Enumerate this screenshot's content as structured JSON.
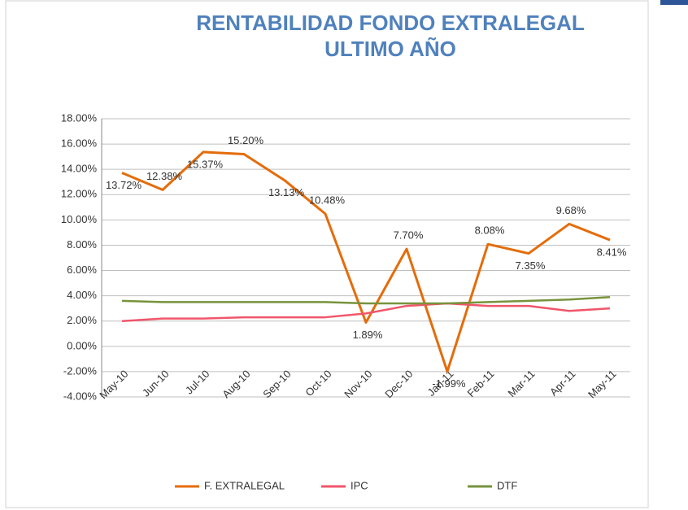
{
  "chart_data": {
    "type": "line",
    "title": "RENTABILIDAD FONDO EXTRALEGAL",
    "subtitle": "ULTIMO AÑO",
    "categories": [
      "May-10",
      "Jun-10",
      "Jul-10",
      "Aug-10",
      "Sep-10",
      "Oct-10",
      "Nov-10",
      "Dec-10",
      "Jan-11",
      "Feb-11",
      "Mar-11",
      "Apr-11",
      "May-11"
    ],
    "series": [
      {
        "name": "F. EXTRALEGAL",
        "color": "#e46c0a",
        "values": [
          13.72,
          12.38,
          15.37,
          15.2,
          13.13,
          10.48,
          1.89,
          7.7,
          -1.99,
          8.08,
          7.35,
          9.68,
          8.41
        ],
        "value_labels": [
          "13.72%",
          "12.38%",
          "15.37%",
          "15.20%",
          "13.13%",
          "10.48%",
          "1.89%",
          "7.70%",
          "-1.99%",
          "8.08%",
          "7.35%",
          "9.68%",
          "8.41%"
        ]
      },
      {
        "name": "IPC",
        "color": "#f0566a",
        "values": [
          2.0,
          2.2,
          2.2,
          2.3,
          2.3,
          2.3,
          2.6,
          3.2,
          3.4,
          3.2,
          3.2,
          2.8,
          3.0
        ]
      },
      {
        "name": "DTF",
        "color": "#77933c",
        "values": [
          3.6,
          3.5,
          3.5,
          3.5,
          3.5,
          3.5,
          3.4,
          3.4,
          3.4,
          3.5,
          3.6,
          3.7,
          3.9
        ]
      }
    ],
    "ylim": [
      -4,
      18
    ],
    "yticks": [
      {
        "value": -4,
        "label": "-4.00%"
      },
      {
        "value": -2,
        "label": "-2.00%"
      },
      {
        "value": 0,
        "label": "0.00%"
      },
      {
        "value": 2,
        "label": "2.00%"
      },
      {
        "value": 4,
        "label": "4.00%"
      },
      {
        "value": 6,
        "label": "6.00%"
      },
      {
        "value": 8,
        "label": "8.00%"
      },
      {
        "value": 10,
        "label": "10.00%"
      },
      {
        "value": 12,
        "label": "12.00%"
      },
      {
        "value": 14,
        "label": "14.00%"
      },
      {
        "value": 16,
        "label": "16.00%"
      },
      {
        "value": 18,
        "label": "18.00%"
      }
    ],
    "grid": true
  }
}
